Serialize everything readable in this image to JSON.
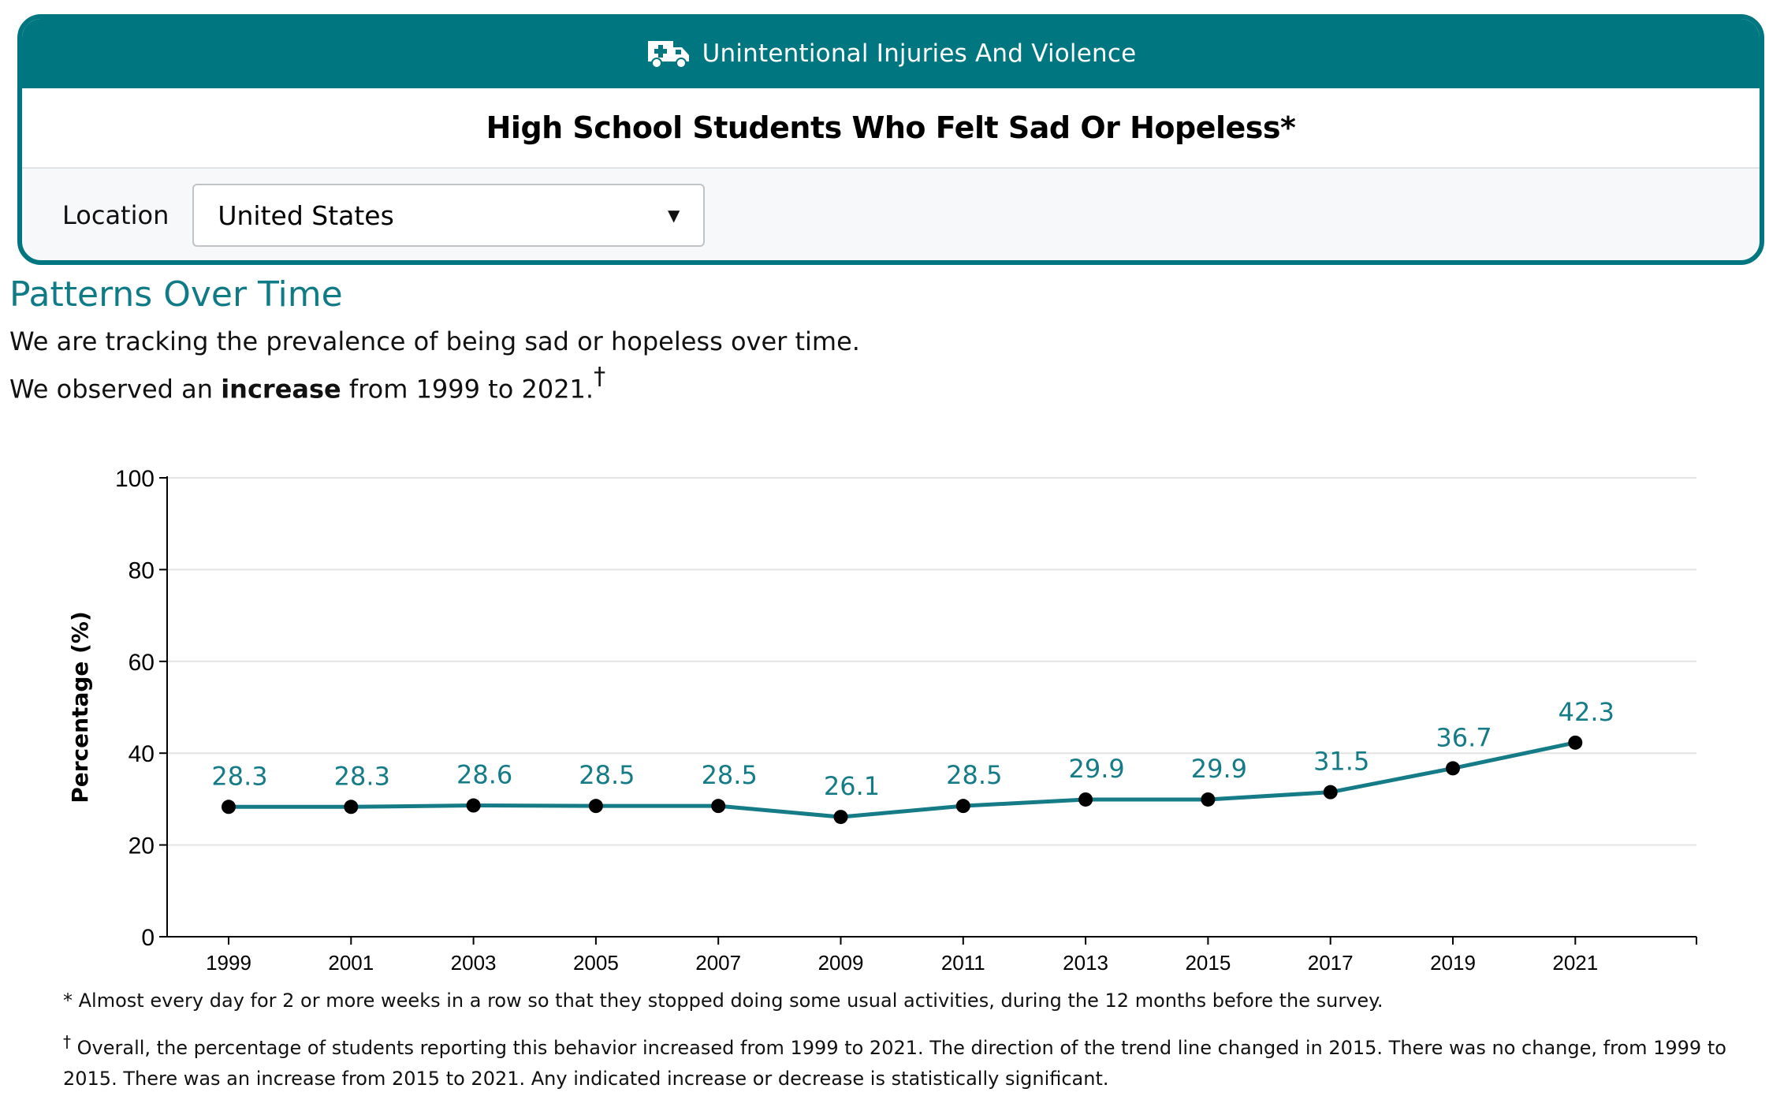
{
  "header": {
    "category": "Unintentional Injuries And Violence",
    "category_icon": "ambulance-icon",
    "title": "High School Students Who Felt Sad Or Hopeless*"
  },
  "filter": {
    "label": "Location",
    "selected": "United States"
  },
  "section": {
    "title": "Patterns Over Time",
    "line1": "We are tracking the prevalence of being sad or hopeless over time.",
    "line2_prefix": "We observed an ",
    "line2_bold": "increase",
    "line2_suffix": " from 1999 to 2021.",
    "line2_mark": "†"
  },
  "chart_data": {
    "type": "line",
    "ylabel": "Percentage (%)",
    "ylim": [
      0,
      100
    ],
    "yticks": [
      0,
      20,
      40,
      60,
      80,
      100
    ],
    "grid": true,
    "categories": [
      "1999",
      "2001",
      "2003",
      "2005",
      "2007",
      "2009",
      "2011",
      "2013",
      "2015",
      "2017",
      "2019",
      "2021"
    ],
    "values": [
      28.3,
      28.3,
      28.6,
      28.5,
      28.5,
      26.1,
      28.5,
      29.9,
      29.9,
      31.5,
      36.7,
      42.3
    ],
    "line_color": "#147b87",
    "label_color": "#147b87"
  },
  "footnotes": {
    "note1": "* Almost every day for 2 or more weeks in a row so that they stopped doing some usual activities, during the 12 months before the survey.",
    "note2_mark": "†",
    "note2": " Overall, the percentage of students reporting this behavior increased from 1999 to 2021. The direction of the trend line changed in 2015. There was no change, from 1999 to 2015. There was an increase from 2015 to 2021. Any indicated increase or decrease is statistically significant."
  }
}
